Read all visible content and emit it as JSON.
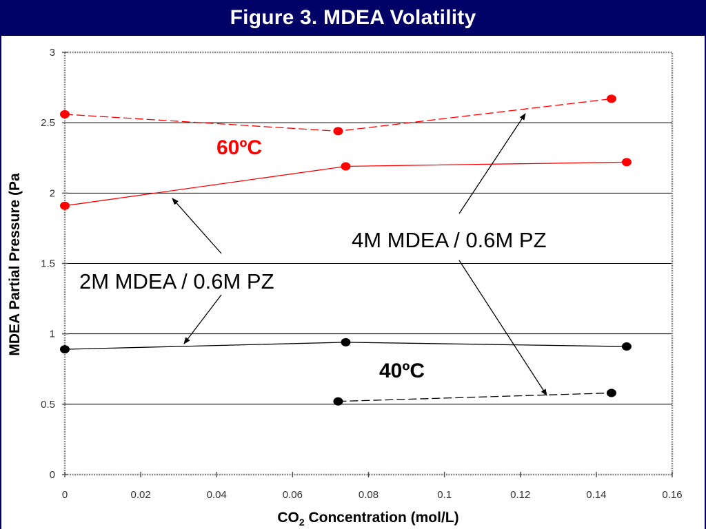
{
  "header": {
    "title": "Figure 3.  MDEA Volatility"
  },
  "colors": {
    "title_bg": "#000066",
    "hot": "#ff0000",
    "cold": "#000000",
    "grid": "#000000"
  },
  "chart_data": {
    "type": "line",
    "title": "Figure 3.  MDEA Volatility",
    "xlabel_main": "CO",
    "xlabel_sub": "2",
    "xlabel_rest": " Concentration (mol/L)",
    "ylabel": "MDEA Partial Pressure (Pa",
    "xlim": [
      0,
      0.16
    ],
    "ylim": [
      0,
      3
    ],
    "x_ticks": [
      0,
      0.02,
      0.04,
      0.06,
      0.08,
      0.1,
      0.12,
      0.14,
      0.16
    ],
    "x_tick_labels": [
      "0",
      "0.02",
      "0.04",
      "0.06",
      "0.08",
      "0.1",
      "0.12",
      "0.14",
      "0.16"
    ],
    "y_ticks": [
      0,
      0.5,
      1,
      1.5,
      2,
      2.5,
      3
    ],
    "y_tick_labels": [
      "0",
      "0.5",
      "1",
      "1.5",
      "2",
      "2.5",
      "3"
    ],
    "grid": "horizontal",
    "series": [
      {
        "x": [
          0,
          0.072,
          0.144
        ],
        "y": [
          2.56,
          2.44,
          2.67
        ],
        "color": "#ff0000",
        "dash": true
      },
      {
        "x": [
          0,
          0.074,
          0.148
        ],
        "y": [
          1.91,
          2.19,
          2.22
        ],
        "color": "#ff0000",
        "dash": false
      },
      {
        "x": [
          0,
          0.074,
          0.148
        ],
        "y": [
          0.89,
          0.94,
          0.91
        ],
        "color": "#000000",
        "dash": false
      },
      {
        "x": [
          0.072,
          0.144
        ],
        "y": [
          0.52,
          0.58
        ],
        "color": "#000000",
        "dash": true
      }
    ],
    "annotations": {
      "hot_label": "60ºC",
      "cold_label": "40ºC",
      "label_4m": "4M MDEA / 0.6M PZ",
      "label_2m": "2M MDEA / 0.6M PZ"
    }
  }
}
